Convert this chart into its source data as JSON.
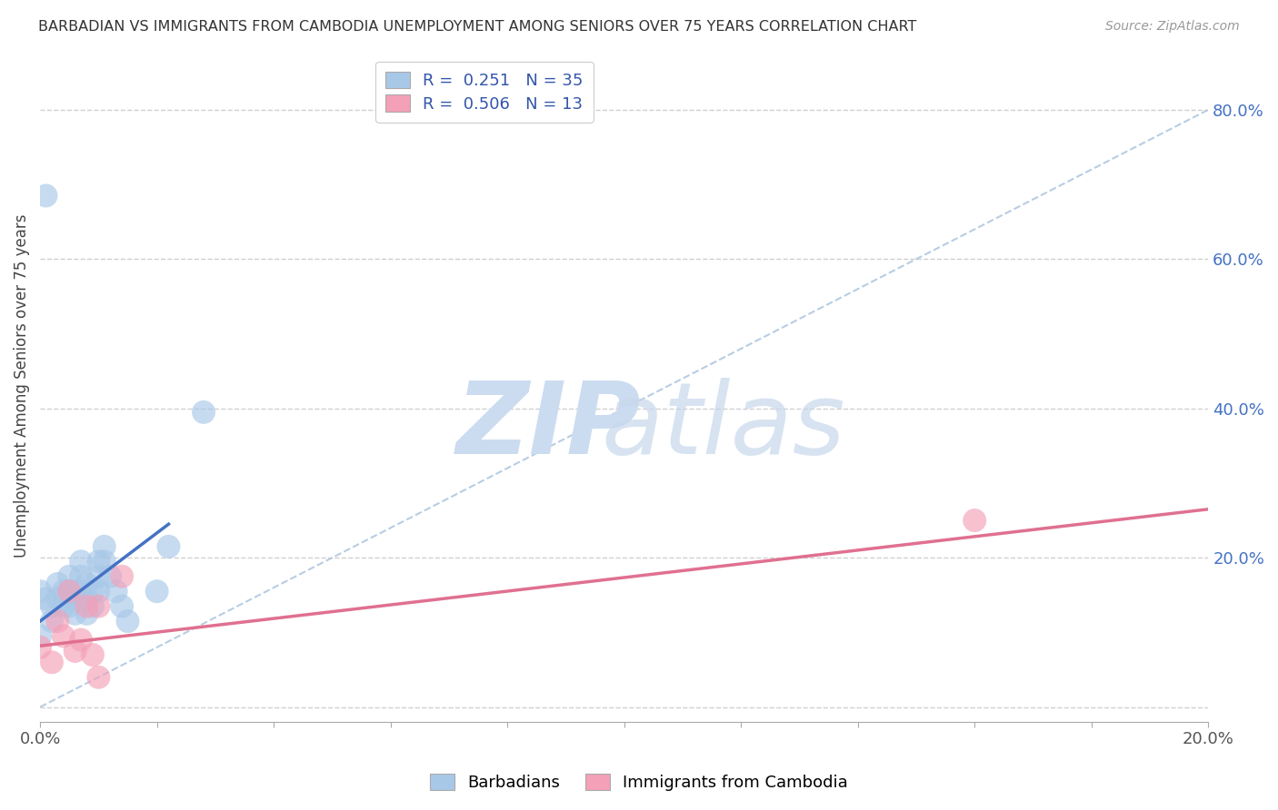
{
  "title": "BARBADIAN VS IMMIGRANTS FROM CAMBODIA UNEMPLOYMENT AMONG SENIORS OVER 75 YEARS CORRELATION CHART",
  "source": "Source: ZipAtlas.com",
  "ylabel": "Unemployment Among Seniors over 75 years",
  "xlim": [
    0.0,
    0.2
  ],
  "ylim": [
    -0.02,
    0.88
  ],
  "yticks": [
    0.0,
    0.2,
    0.4,
    0.6,
    0.8
  ],
  "ytick_labels": [
    "",
    "20.0%",
    "40.0%",
    "60.0%",
    "80.0%"
  ],
  "r_barbadian": 0.251,
  "n_barbadian": 35,
  "r_cambodia": 0.506,
  "n_cambodia": 13,
  "color_barbadian": "#a8c8e8",
  "color_cambodia": "#f4a0b8",
  "color_line_barbadian": "#4472c4",
  "color_line_cambodia": "#e07090",
  "background_color": "#ffffff",
  "barbadian_x": [
    0.0,
    0.001,
    0.002,
    0.002,
    0.003,
    0.003,
    0.004,
    0.004,
    0.005,
    0.005,
    0.005,
    0.006,
    0.006,
    0.007,
    0.007,
    0.007,
    0.008,
    0.008,
    0.008,
    0.009,
    0.009,
    0.01,
    0.01,
    0.01,
    0.011,
    0.011,
    0.012,
    0.013,
    0.014,
    0.015,
    0.001,
    0.02,
    0.022,
    0.028,
    0.0
  ],
  "barbadian_y": [
    0.155,
    0.145,
    0.135,
    0.115,
    0.165,
    0.145,
    0.155,
    0.135,
    0.175,
    0.155,
    0.135,
    0.145,
    0.125,
    0.195,
    0.175,
    0.155,
    0.165,
    0.145,
    0.125,
    0.155,
    0.135,
    0.195,
    0.175,
    0.155,
    0.215,
    0.195,
    0.175,
    0.155,
    0.135,
    0.115,
    0.685,
    0.155,
    0.215,
    0.395,
    0.095
  ],
  "cambodia_x": [
    0.0,
    0.002,
    0.003,
    0.004,
    0.005,
    0.006,
    0.007,
    0.008,
    0.009,
    0.01,
    0.014,
    0.16,
    0.01
  ],
  "cambodia_y": [
    0.08,
    0.06,
    0.115,
    0.095,
    0.155,
    0.075,
    0.09,
    0.135,
    0.07,
    0.135,
    0.175,
    0.25,
    0.04
  ],
  "blue_line_x": [
    0.0,
    0.022
  ],
  "blue_line_y": [
    0.115,
    0.245
  ],
  "pink_line_x": [
    0.0,
    0.2
  ],
  "pink_line_y": [
    0.082,
    0.265
  ],
  "dash_line_x": [
    0.0,
    0.2
  ],
  "dash_line_y": [
    0.0,
    0.8
  ]
}
